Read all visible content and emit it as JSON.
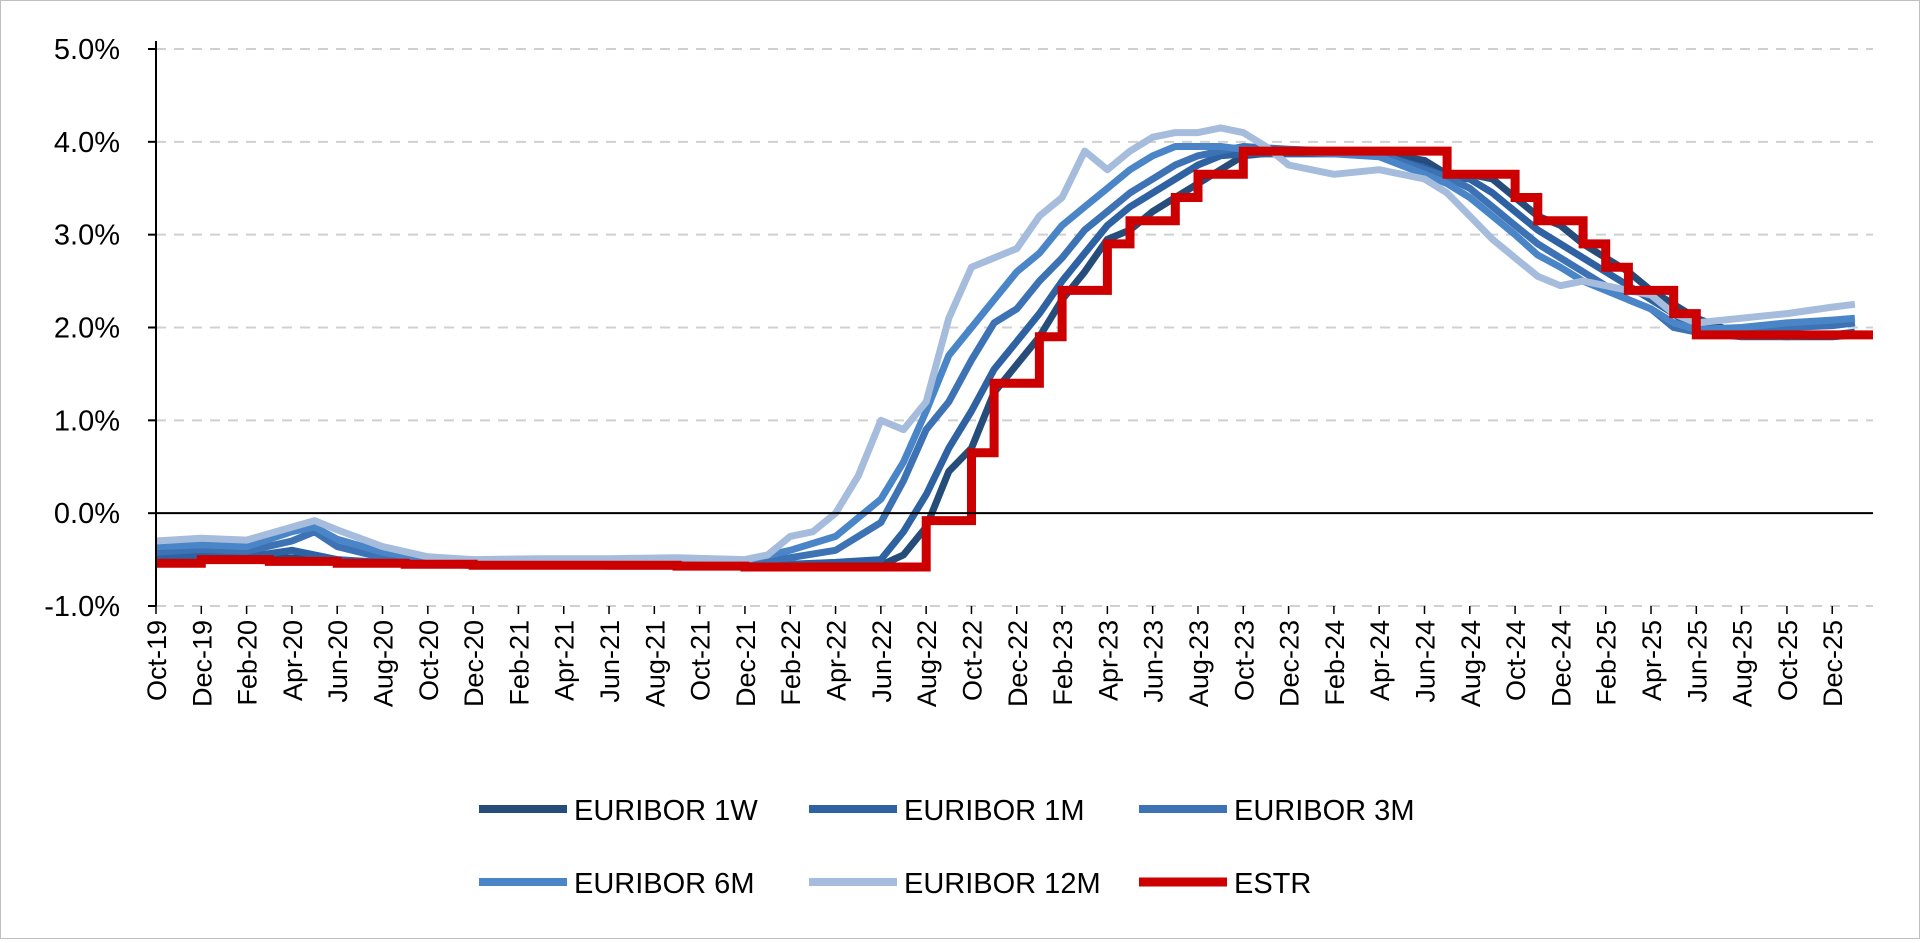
{
  "chart_data": {
    "type": "line",
    "title": "",
    "xlabel": "",
    "ylabel": "",
    "ylim": [
      -1.0,
      5.0
    ],
    "y_ticks": [
      "5.0%",
      "4.0%",
      "3.0%",
      "2.0%",
      "1.0%",
      "0.0%",
      "-1.0%"
    ],
    "y_tick_values": [
      5.0,
      4.0,
      3.0,
      2.0,
      1.0,
      0.0,
      -1.0
    ],
    "x_ticks": [
      "Oct-19",
      "Dec-19",
      "Feb-20",
      "Apr-20",
      "Jun-20",
      "Aug-20",
      "Oct-20",
      "Dec-20",
      "Feb-21",
      "Apr-21",
      "Jun-21",
      "Aug-21",
      "Oct-21",
      "Dec-21",
      "Feb-22",
      "Apr-22",
      "Jun-22",
      "Aug-22",
      "Oct-22",
      "Dec-22",
      "Feb-23",
      "Apr-23",
      "Jun-23",
      "Aug-23",
      "Oct-23",
      "Dec-23",
      "Feb-24",
      "Apr-24",
      "Jun-24",
      "Aug-24",
      "Oct-24",
      "Dec-24",
      "Feb-25",
      "Apr-25",
      "Jun-25",
      "Aug-25",
      "Oct-25",
      "Dec-25"
    ],
    "xlim": [
      "Oct-19",
      "Jan-26"
    ],
    "grid": "horizontal dashed",
    "legend_position": "bottom",
    "series": [
      {
        "name": "EURIBOR 1W",
        "color": "#264d7a",
        "width": 7,
        "x": [
          "2019-10",
          "2019-12",
          "2020-02",
          "2020-04",
          "2020-06",
          "2020-08",
          "2020-10",
          "2020-12",
          "2021-03",
          "2021-06",
          "2021-09",
          "2021-12",
          "2022-02",
          "2022-04",
          "2022-06",
          "2022-07",
          "2022-08",
          "2022-09",
          "2022-10",
          "2022-11",
          "2022-12",
          "2023-01",
          "2023-02",
          "2023-03",
          "2023-04",
          "2023-05",
          "2023-06",
          "2023-07",
          "2023-08",
          "2023-09",
          "2023-10",
          "2023-12",
          "2024-02",
          "2024-04",
          "2024-06",
          "2024-07",
          "2024-08",
          "2024-09",
          "2024-10",
          "2024-11",
          "2024-12",
          "2025-01",
          "2025-02",
          "2025-03",
          "2025-04",
          "2025-05",
          "2025-06",
          "2025-08",
          "2025-10",
          "2025-12",
          "2026-01"
        ],
        "values": [
          -0.52,
          -0.5,
          -0.5,
          -0.48,
          -0.52,
          -0.54,
          -0.55,
          -0.56,
          -0.56,
          -0.57,
          -0.57,
          -0.58,
          -0.57,
          -0.56,
          -0.56,
          -0.45,
          -0.15,
          0.45,
          0.7,
          1.3,
          1.6,
          1.9,
          2.3,
          2.6,
          2.95,
          3.05,
          3.25,
          3.4,
          3.55,
          3.7,
          3.85,
          3.9,
          3.9,
          3.88,
          3.8,
          3.65,
          3.65,
          3.6,
          3.4,
          3.2,
          3.1,
          2.9,
          2.75,
          2.6,
          2.4,
          2.25,
          2.1,
          1.92,
          1.9,
          1.9,
          1.92
        ]
      },
      {
        "name": "EURIBOR 1M",
        "color": "#2e62a3",
        "width": 7,
        "x": [
          "2019-10",
          "2019-12",
          "2020-02",
          "2020-04",
          "2020-06",
          "2020-08",
          "2020-10",
          "2020-12",
          "2021-03",
          "2021-06",
          "2021-09",
          "2021-12",
          "2022-02",
          "2022-04",
          "2022-06",
          "2022-07",
          "2022-08",
          "2022-09",
          "2022-10",
          "2022-11",
          "2022-12",
          "2023-01",
          "2023-02",
          "2023-03",
          "2023-04",
          "2023-05",
          "2023-06",
          "2023-07",
          "2023-08",
          "2023-09",
          "2023-10",
          "2023-12",
          "2024-02",
          "2024-04",
          "2024-06",
          "2024-07",
          "2024-08",
          "2024-09",
          "2024-10",
          "2024-11",
          "2024-12",
          "2025-01",
          "2025-02",
          "2025-03",
          "2025-04",
          "2025-05",
          "2025-06",
          "2025-08",
          "2025-10",
          "2025-12",
          "2026-01"
        ],
        "values": [
          -0.48,
          -0.46,
          -0.47,
          -0.4,
          -0.5,
          -0.53,
          -0.55,
          -0.56,
          -0.56,
          -0.56,
          -0.56,
          -0.57,
          -0.55,
          -0.53,
          -0.5,
          -0.2,
          0.2,
          0.7,
          1.1,
          1.55,
          1.85,
          2.15,
          2.5,
          2.8,
          3.1,
          3.3,
          3.45,
          3.6,
          3.75,
          3.85,
          3.87,
          3.87,
          3.87,
          3.86,
          3.72,
          3.62,
          3.6,
          3.45,
          3.25,
          3.05,
          2.9,
          2.75,
          2.6,
          2.45,
          2.3,
          2.15,
          1.95,
          1.9,
          1.9,
          1.92,
          1.95
        ]
      },
      {
        "name": "EURIBOR 3M",
        "color": "#3d72b4",
        "width": 7,
        "x": [
          "2019-10",
          "2019-12",
          "2020-02",
          "2020-04",
          "2020-05",
          "2020-06",
          "2020-08",
          "2020-10",
          "2020-12",
          "2021-03",
          "2021-06",
          "2021-09",
          "2021-12",
          "2022-02",
          "2022-04",
          "2022-06",
          "2022-07",
          "2022-08",
          "2022-09",
          "2022-10",
          "2022-11",
          "2022-12",
          "2023-01",
          "2023-02",
          "2023-03",
          "2023-04",
          "2023-05",
          "2023-06",
          "2023-07",
          "2023-08",
          "2023-09",
          "2023-10",
          "2023-12",
          "2024-02",
          "2024-04",
          "2024-06",
          "2024-07",
          "2024-08",
          "2024-09",
          "2024-10",
          "2024-11",
          "2024-12",
          "2025-01",
          "2025-02",
          "2025-03",
          "2025-04",
          "2025-05",
          "2025-06",
          "2025-08",
          "2025-10",
          "2025-12",
          "2026-01"
        ],
        "values": [
          -0.42,
          -0.39,
          -0.41,
          -0.3,
          -0.2,
          -0.36,
          -0.48,
          -0.51,
          -0.54,
          -0.54,
          -0.54,
          -0.55,
          -0.53,
          -0.48,
          -0.4,
          -0.1,
          0.35,
          0.9,
          1.2,
          1.65,
          2.05,
          2.2,
          2.5,
          2.75,
          3.05,
          3.25,
          3.45,
          3.6,
          3.75,
          3.85,
          3.9,
          3.95,
          3.92,
          3.9,
          3.87,
          3.7,
          3.62,
          3.5,
          3.3,
          3.1,
          2.9,
          2.75,
          2.6,
          2.45,
          2.3,
          2.2,
          2.0,
          1.95,
          1.95,
          2.0,
          2.02,
          2.05
        ]
      },
      {
        "name": "EURIBOR 6M",
        "color": "#4a86c7",
        "width": 7,
        "x": [
          "2019-10",
          "2019-12",
          "2020-02",
          "2020-04",
          "2020-05",
          "2020-06",
          "2020-08",
          "2020-10",
          "2020-12",
          "2021-03",
          "2021-06",
          "2021-09",
          "2021-12",
          "2022-02",
          "2022-04",
          "2022-05",
          "2022-06",
          "2022-07",
          "2022-08",
          "2022-09",
          "2022-10",
          "2022-11",
          "2022-12",
          "2023-01",
          "2023-02",
          "2023-03",
          "2023-04",
          "2023-05",
          "2023-06",
          "2023-07",
          "2023-08",
          "2023-09",
          "2023-10",
          "2023-12",
          "2024-02",
          "2024-04",
          "2024-06",
          "2024-07",
          "2024-08",
          "2024-09",
          "2024-10",
          "2024-11",
          "2024-12",
          "2025-01",
          "2025-02",
          "2025-03",
          "2025-04",
          "2025-05",
          "2025-06",
          "2025-08",
          "2025-10",
          "2025-12",
          "2026-01"
        ],
        "values": [
          -0.36,
          -0.34,
          -0.36,
          -0.2,
          -0.15,
          -0.28,
          -0.42,
          -0.5,
          -0.52,
          -0.52,
          -0.52,
          -0.53,
          -0.51,
          -0.4,
          -0.25,
          -0.05,
          0.15,
          0.55,
          1.1,
          1.7,
          2.0,
          2.3,
          2.6,
          2.8,
          3.1,
          3.3,
          3.5,
          3.7,
          3.85,
          3.95,
          3.95,
          3.95,
          3.92,
          3.9,
          3.87,
          3.84,
          3.65,
          3.55,
          3.4,
          3.2,
          3.0,
          2.78,
          2.65,
          2.5,
          2.4,
          2.3,
          2.2,
          2.05,
          1.98,
          2.0,
          2.05,
          2.08,
          2.1
        ]
      },
      {
        "name": "EURIBOR 12M",
        "color": "#a6bcdc",
        "width": 7,
        "x": [
          "2019-10",
          "2019-12",
          "2020-02",
          "2020-04",
          "2020-05",
          "2020-06",
          "2020-08",
          "2020-10",
          "2020-12",
          "2021-03",
          "2021-06",
          "2021-09",
          "2021-12",
          "2022-01",
          "2022-02",
          "2022-03",
          "2022-04",
          "2022-05",
          "2022-06",
          "2022-07",
          "2022-08",
          "2022-09",
          "2022-10",
          "2022-11",
          "2022-12",
          "2023-01",
          "2023-02",
          "2023-03",
          "2023-04",
          "2023-05",
          "2023-06",
          "2023-07",
          "2023-08",
          "2023-09",
          "2023-10",
          "2023-11",
          "2023-12",
          "2024-02",
          "2024-04",
          "2024-06",
          "2024-07",
          "2024-08",
          "2024-09",
          "2024-10",
          "2024-11",
          "2024-12",
          "2025-01",
          "2025-02",
          "2025-03",
          "2025-04",
          "2025-05",
          "2025-06",
          "2025-08",
          "2025-10",
          "2025-12",
          "2026-01"
        ],
        "values": [
          -0.3,
          -0.27,
          -0.29,
          -0.15,
          -0.08,
          -0.18,
          -0.36,
          -0.47,
          -0.5,
          -0.49,
          -0.49,
          -0.48,
          -0.5,
          -0.45,
          -0.25,
          -0.2,
          0.0,
          0.4,
          1.0,
          0.9,
          1.2,
          2.1,
          2.65,
          2.75,
          2.85,
          3.2,
          3.4,
          3.9,
          3.7,
          3.9,
          4.05,
          4.1,
          4.1,
          4.15,
          4.1,
          3.95,
          3.75,
          3.65,
          3.7,
          3.6,
          3.45,
          3.2,
          2.95,
          2.75,
          2.55,
          2.45,
          2.5,
          2.45,
          2.4,
          2.35,
          2.15,
          2.05,
          2.1,
          2.15,
          2.22,
          2.25
        ]
      },
      {
        "name": "ESTR",
        "color": "#cc0000",
        "width": 9,
        "step": true,
        "x": [
          "2019-10",
          "2019-12",
          "2020-03",
          "2020-06",
          "2020-09",
          "2020-12",
          "2021-03",
          "2021-06",
          "2021-09",
          "2021-12",
          "2022-03",
          "2022-06",
          "2022-07",
          "2022-08",
          "2022-09",
          "2022-10",
          "2022-11",
          "2022-12",
          "2023-01",
          "2023-02",
          "2023-03",
          "2023-04",
          "2023-05",
          "2023-06",
          "2023-07",
          "2023-08",
          "2023-09",
          "2023-10",
          "2023-12",
          "2024-02",
          "2024-04",
          "2024-06",
          "2024-07",
          "2024-09",
          "2024-10",
          "2024-11",
          "2024-12",
          "2025-01",
          "2025-02",
          "2025-03",
          "2025-04",
          "2025-05",
          "2025-06",
          "2025-08",
          "2025-10",
          "2025-12",
          "2026-01"
        ],
        "values": [
          -0.54,
          -0.5,
          -0.52,
          -0.54,
          -0.55,
          -0.56,
          -0.56,
          -0.56,
          -0.57,
          -0.58,
          -0.58,
          -0.58,
          -0.58,
          -0.08,
          -0.08,
          0.65,
          1.4,
          1.4,
          1.9,
          2.4,
          2.4,
          2.9,
          3.15,
          3.15,
          3.4,
          3.65,
          3.65,
          3.9,
          3.9,
          3.9,
          3.9,
          3.9,
          3.65,
          3.65,
          3.4,
          3.15,
          3.15,
          2.9,
          2.65,
          2.4,
          2.4,
          2.15,
          1.92,
          1.92,
          1.92,
          1.92,
          1.92
        ]
      }
    ]
  }
}
